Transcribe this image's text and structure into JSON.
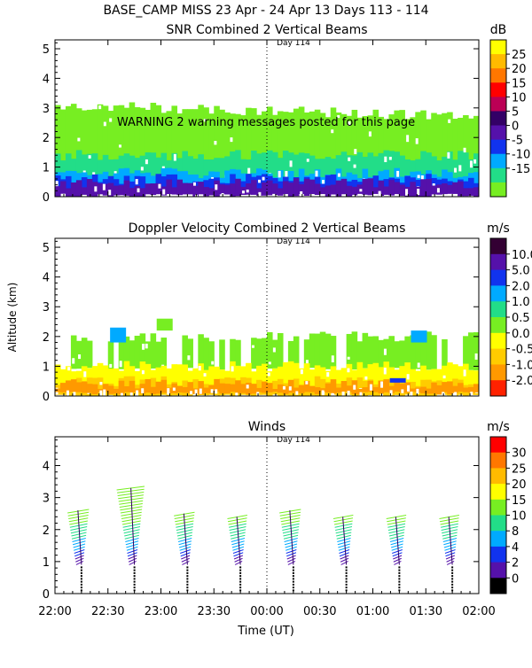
{
  "page": {
    "title": "BASE_CAMP MISS  23 Apr - 24 Apr 13 Days 113 - 114",
    "day_marker": "Day 114",
    "warning": "WARNING  2 warning messages posted for this page",
    "xlabel": "Time (UT)",
    "ylabel": "Altitude (km)"
  },
  "chart_data": [
    {
      "type": "heatmap",
      "title": "SNR Combined 2 Vertical Beams",
      "unit": "dB",
      "x_ticks": [
        "22:00",
        "22:30",
        "23:00",
        "23:30",
        "00:00",
        "00:30",
        "01:00",
        "01:30",
        "02:00"
      ],
      "y_ticks": [
        "0",
        "1",
        "2",
        "3",
        "4",
        "5"
      ],
      "ylim": [
        0,
        5.3
      ],
      "colorbar_labels": [
        "25",
        "20",
        "15",
        "10",
        "5",
        "0",
        "-5",
        "-10",
        "-15"
      ],
      "colorbar_colors": [
        "#ffff00",
        "#ffbb00",
        "#ff7700",
        "#ff0000",
        "#bb0055",
        "#330066",
        "#5511aa",
        "#1133ee",
        "#00aaff",
        "#22dd88",
        "#77ee22"
      ],
      "bands": [
        {
          "color": "#77ee22",
          "y": [
            0.7,
            3.1
          ]
        },
        {
          "color": "#22dd88",
          "y": [
            0.6,
            1.4
          ]
        },
        {
          "color": "#00aaff",
          "y": [
            0.3,
            0.8
          ]
        },
        {
          "color": "#1133ee",
          "y": [
            0.15,
            0.6
          ]
        },
        {
          "color": "#5511aa",
          "y": [
            0.05,
            0.45
          ]
        }
      ]
    },
    {
      "type": "heatmap",
      "title": "Doppler Velocity Combined 2 Vertical Beams",
      "unit": "m/s",
      "x_ticks": [
        "22:00",
        "22:30",
        "23:00",
        "23:30",
        "00:00",
        "00:30",
        "01:00",
        "01:30",
        "02:00"
      ],
      "y_ticks": [
        "0",
        "1",
        "2",
        "3",
        "4",
        "5"
      ],
      "ylim": [
        0,
        5.3
      ],
      "colorbar_labels": [
        "10.0",
        "5.0",
        "2.0",
        "1.0",
        "0.5",
        "0.0",
        "-0.5",
        "-1.0",
        "-2.0"
      ],
      "colorbar_colors": [
        "#330033",
        "#5511aa",
        "#1133ee",
        "#00aaff",
        "#22dd88",
        "#77ee22",
        "#ffff00",
        "#ffcc00",
        "#ff9900",
        "#ff2200"
      ],
      "bands": [
        {
          "color": "#77ee22",
          "y": [
            0.9,
            2.0
          ]
        },
        {
          "color": "#ffff00",
          "y": [
            0.1,
            1.0
          ]
        },
        {
          "color": "#ffcc00",
          "y": [
            0.0,
            0.5
          ]
        },
        {
          "color": "#ff9900",
          "y": [
            0.1,
            0.4
          ]
        }
      ]
    },
    {
      "type": "scatter",
      "title": "Winds",
      "unit": "m/s",
      "x_ticks": [
        "22:00",
        "22:30",
        "23:00",
        "23:30",
        "00:00",
        "00:30",
        "01:00",
        "01:30",
        "02:00"
      ],
      "y_ticks": [
        "0",
        "1",
        "2",
        "3",
        "4"
      ],
      "ylim": [
        0,
        4.9
      ],
      "colorbar_labels": [
        "30",
        "25",
        "20",
        "15",
        "10",
        "8",
        "4",
        "2",
        "0"
      ],
      "colorbar_colors": [
        "#ff0000",
        "#ff7700",
        "#ffbb00",
        "#ffff00",
        "#77ee22",
        "#22dd88",
        "#00aaff",
        "#1133ee",
        "#5511aa",
        "#000000"
      ],
      "profiles_time": [
        "22:15",
        "22:45",
        "23:15",
        "23:45",
        "00:15",
        "00:45",
        "01:15",
        "01:45"
      ],
      "profile_top_km": [
        2.6,
        3.3,
        2.5,
        2.4,
        2.6,
        2.4,
        2.4,
        2.4
      ]
    }
  ]
}
